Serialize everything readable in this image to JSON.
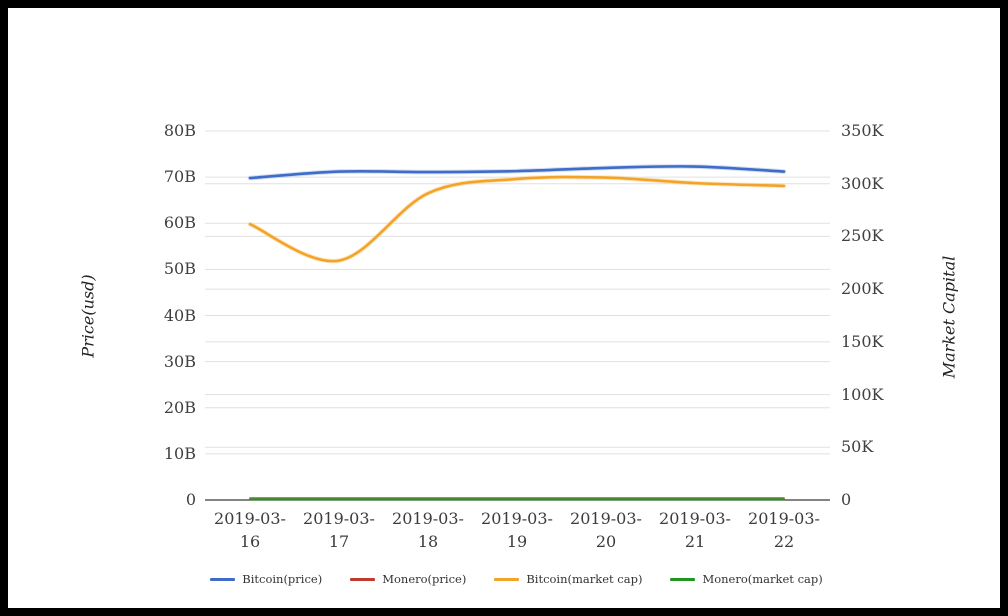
{
  "page": {
    "background_color": "#ffffff",
    "frame_color": "#000000"
  },
  "chart_data": {
    "type": "line",
    "title": "",
    "x": [
      "2019-03-16",
      "2019-03-17",
      "2019-03-18",
      "2019-03-19",
      "2019-03-20",
      "2019-03-21",
      "2019-03-22"
    ],
    "x_tick_labels": [
      "2019-03-\n16",
      "2019-03-\n17",
      "2019-03-\n18",
      "2019-03-\n19",
      "2019-03-\n20",
      "2019-03-\n21",
      "2019-03-\n22"
    ],
    "series": [
      {
        "name": "Bitcoin(price)",
        "color": "#3e6cc8",
        "halo_color": "#a9c1ea",
        "line_width": 2.6,
        "opacity": 1,
        "values_usd_billions": [
          69.8,
          71.2,
          71.1,
          71.3,
          72.0,
          72.3,
          71.2
        ]
      },
      {
        "name": "Monero(price)",
        "color": "#bf3b2b",
        "halo_color": "",
        "line_width": 1.6,
        "opacity": 0.8,
        "values_usd_billions": [
          0.45,
          0.45,
          0.45,
          0.45,
          0.45,
          0.45,
          0.45
        ]
      },
      {
        "name": "Bitcoin(market cap)",
        "color": "#f3a329",
        "halo_color": "#fbd596",
        "line_width": 2.6,
        "opacity": 1,
        "values_usd_billions": [
          59.8,
          51.9,
          66.5,
          69.6,
          69.9,
          68.7,
          68.1
        ]
      },
      {
        "name": "Monero(market cap)",
        "color": "#1e9620",
        "halo_color": "",
        "line_width": 2.2,
        "opacity": 1,
        "values_usd_billions": [
          0.15,
          0.15,
          0.15,
          0.15,
          0.15,
          0.15,
          0.15
        ]
      }
    ],
    "left_axis": {
      "title": "Price(usd)",
      "min": 0,
      "max": 80,
      "tick_step_billions": 10,
      "tick_labels": [
        "0",
        "10B",
        "20B",
        "30B",
        "40B",
        "50B",
        "60B",
        "70B",
        "80B"
      ]
    },
    "right_axis": {
      "title": "Market Capital",
      "min": 0,
      "max": 350,
      "tick_step_thousands": 50,
      "tick_labels": [
        "0",
        "50K",
        "100K",
        "150K",
        "200K",
        "250K",
        "300K",
        "350K"
      ]
    },
    "grid": {
      "on": true,
      "line_color": "#e0e0e0",
      "axis_line_color": "#3a3a3a"
    },
    "legend_position": "bottom"
  }
}
